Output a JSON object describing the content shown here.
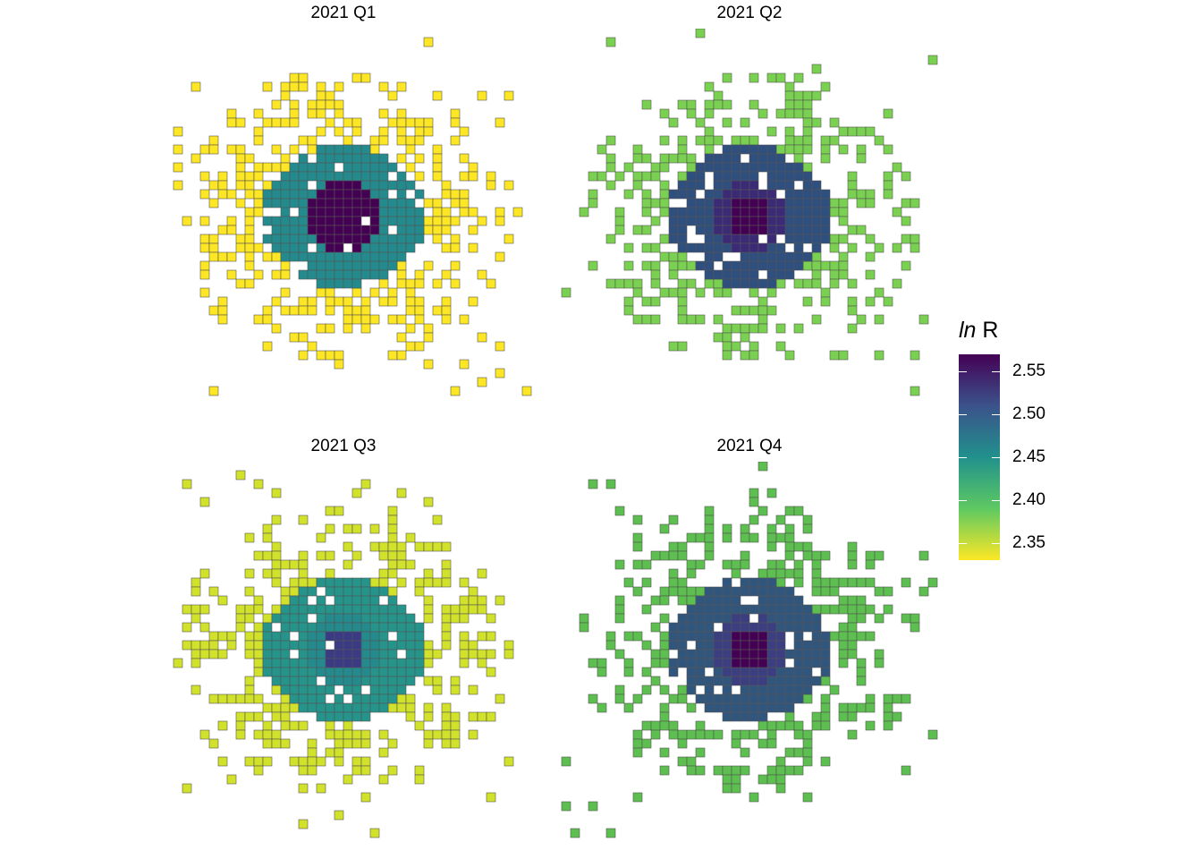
{
  "panels": [
    {
      "title": "2021 Q1",
      "rings": [
        {
          "value": 2.562,
          "color": "#440154"
        },
        {
          "value": 2.562,
          "color": "#440154"
        },
        {
          "value": 2.445,
          "color": "#238a8d"
        },
        {
          "value": 2.352,
          "color": "#fde725"
        }
      ]
    },
    {
      "title": "2021 Q2",
      "rings": [
        {
          "value": 2.562,
          "color": "#440154"
        },
        {
          "value": 2.53,
          "color": "#3b2a76"
        },
        {
          "value": 2.49,
          "color": "#2f4f7e"
        },
        {
          "value": 2.405,
          "color": "#7ad151"
        }
      ]
    },
    {
      "title": "2021 Q3",
      "rings": [
        {
          "value": 2.52,
          "color": "#3a3b84"
        },
        {
          "value": 2.445,
          "color": "#238a8d"
        },
        {
          "value": 2.438,
          "color": "#25948b"
        },
        {
          "value": 2.368,
          "color": "#d2e22b"
        }
      ]
    },
    {
      "title": "2021 Q4",
      "rings": [
        {
          "value": 2.562,
          "color": "#440154"
        },
        {
          "value": 2.525,
          "color": "#3b3e80"
        },
        {
          "value": 2.49,
          "color": "#31567d"
        },
        {
          "value": 2.42,
          "color": "#5cbf4f"
        }
      ]
    }
  ],
  "legend": {
    "title_math": "ln",
    "title_text": "R",
    "range": [
      2.33,
      2.57
    ],
    "ticks": [
      "2.55",
      "2.50",
      "2.45",
      "2.40",
      "2.35"
    ],
    "colors": [
      "#440154",
      "#3b528b",
      "#21918c",
      "#5ec962",
      "#fde725"
    ]
  }
}
